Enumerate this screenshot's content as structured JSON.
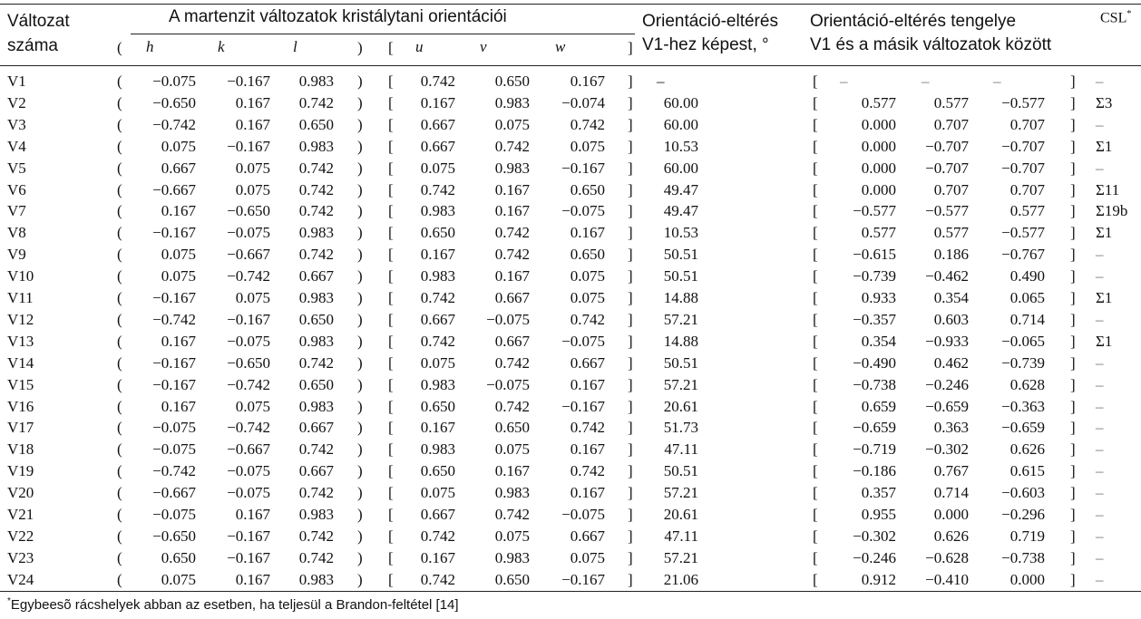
{
  "header": {
    "col1_line1": "Változat",
    "col1_line2": "száma",
    "group_title": "A martenzit változatok kristálytani orientációi",
    "angle_line1": "Orientáció-eltérés",
    "angle_line2": "V1-hez képest, °",
    "axis_line1": "Orientáció-eltérés tengelye",
    "axis_line2": "V1 és a másik változatok között",
    "csl": "CSL",
    "csl_mark": "*",
    "h": "h",
    "k": "k",
    "l": "l",
    "u": "u",
    "v": "v",
    "w": "w",
    "paren_open": "(",
    "paren_close": ")",
    "brack_open": "[",
    "brack_close": "]"
  },
  "rows": [
    {
      "id": "V1",
      "h": "−0.075",
      "k": "−0.167",
      "l": "0.983",
      "u": "0.742",
      "v": "0.650",
      "w": "0.167",
      "angle": "–",
      "a1": "–",
      "a2": "–",
      "a3": "–",
      "csl": "–"
    },
    {
      "id": "V2",
      "h": "−0.650",
      "k": "0.167",
      "l": "0.742",
      "u": "0.167",
      "v": "0.983",
      "w": "−0.074",
      "angle": "60.00",
      "a1": "0.577",
      "a2": "0.577",
      "a3": "−0.577",
      "csl": "Σ3"
    },
    {
      "id": "V3",
      "h": "−0.742",
      "k": "0.167",
      "l": "0.650",
      "u": "0.667",
      "v": "0.075",
      "w": "0.742",
      "angle": "60.00",
      "a1": "0.000",
      "a2": "0.707",
      "a3": "0.707",
      "csl": "–"
    },
    {
      "id": "V4",
      "h": "0.075",
      "k": "−0.167",
      "l": "0.983",
      "u": "0.667",
      "v": "0.742",
      "w": "0.075",
      "angle": "10.53",
      "a1": "0.000",
      "a2": "−0.707",
      "a3": "−0.707",
      "csl": "Σ1"
    },
    {
      "id": "V5",
      "h": "0.667",
      "k": "0.075",
      "l": "0.742",
      "u": "0.075",
      "v": "0.983",
      "w": "−0.167",
      "angle": "60.00",
      "a1": "0.000",
      "a2": "−0.707",
      "a3": "−0.707",
      "csl": "–"
    },
    {
      "id": "V6",
      "h": "−0.667",
      "k": "0.075",
      "l": "0.742",
      "u": "0.742",
      "v": "0.167",
      "w": "0.650",
      "angle": "49.47",
      "a1": "0.000",
      "a2": "0.707",
      "a3": "0.707",
      "csl": "Σ11"
    },
    {
      "id": "V7",
      "h": "0.167",
      "k": "−0.650",
      "l": "0.742",
      "u": "0.983",
      "v": "0.167",
      "w": "−0.075",
      "angle": "49.47",
      "a1": "−0.577",
      "a2": "−0.577",
      "a3": "0.577",
      "csl": "Σ19b"
    },
    {
      "id": "V8",
      "h": "−0.167",
      "k": "−0.075",
      "l": "0.983",
      "u": "0.650",
      "v": "0.742",
      "w": "0.167",
      "angle": "10.53",
      "a1": "0.577",
      "a2": "0.577",
      "a3": "−0.577",
      "csl": "Σ1"
    },
    {
      "id": "V9",
      "h": "0.075",
      "k": "−0.667",
      "l": "0.742",
      "u": "0.167",
      "v": "0.742",
      "w": "0.650",
      "angle": "50.51",
      "a1": "−0.615",
      "a2": "0.186",
      "a3": "−0.767",
      "csl": "–"
    },
    {
      "id": "V10",
      "h": "0.075",
      "k": "−0.742",
      "l": "0.667",
      "u": "0.983",
      "v": "0.167",
      "w": "0.075",
      "angle": "50.51",
      "a1": "−0.739",
      "a2": "−0.462",
      "a3": "0.490",
      "csl": "–"
    },
    {
      "id": "V11",
      "h": "−0.167",
      "k": "0.075",
      "l": "0.983",
      "u": "0.742",
      "v": "0.667",
      "w": "0.075",
      "angle": "14.88",
      "a1": "0.933",
      "a2": "0.354",
      "a3": "0.065",
      "csl": "Σ1"
    },
    {
      "id": "V12",
      "h": "−0.742",
      "k": "−0.167",
      "l": "0.650",
      "u": "0.667",
      "v": "−0.075",
      "w": "0.742",
      "angle": "57.21",
      "a1": "−0.357",
      "a2": "0.603",
      "a3": "0.714",
      "csl": "–"
    },
    {
      "id": "V13",
      "h": "0.167",
      "k": "−0.075",
      "l": "0.983",
      "u": "0.742",
      "v": "0.667",
      "w": "−0.075",
      "angle": "14.88",
      "a1": "0.354",
      "a2": "−0.933",
      "a3": "−0.065",
      "csl": "Σ1"
    },
    {
      "id": "V14",
      "h": "−0.167",
      "k": "−0.650",
      "l": "0.742",
      "u": "0.075",
      "v": "0.742",
      "w": "0.667",
      "angle": "50.51",
      "a1": "−0.490",
      "a2": "0.462",
      "a3": "−0.739",
      "csl": "–"
    },
    {
      "id": "V15",
      "h": "−0.167",
      "k": "−0.742",
      "l": "0.650",
      "u": "0.983",
      "v": "−0.075",
      "w": "0.167",
      "angle": "57.21",
      "a1": "−0.738",
      "a2": "−0.246",
      "a3": "0.628",
      "csl": "–"
    },
    {
      "id": "V16",
      "h": "0.167",
      "k": "0.075",
      "l": "0.983",
      "u": "0.650",
      "v": "0.742",
      "w": "−0.167",
      "angle": "20.61",
      "a1": "0.659",
      "a2": "−0.659",
      "a3": "−0.363",
      "csl": "–"
    },
    {
      "id": "V17",
      "h": "−0.075",
      "k": "−0.742",
      "l": "0.667",
      "u": "0.167",
      "v": "0.650",
      "w": "0.742",
      "angle": "51.73",
      "a1": "−0.659",
      "a2": "0.363",
      "a3": "−0.659",
      "csl": "–"
    },
    {
      "id": "V18",
      "h": "−0.075",
      "k": "−0.667",
      "l": "0.742",
      "u": "0.983",
      "v": "0.075",
      "w": "0.167",
      "angle": "47.11",
      "a1": "−0.719",
      "a2": "−0.302",
      "a3": "0.626",
      "csl": "–"
    },
    {
      "id": "V19",
      "h": "−0.742",
      "k": "−0.075",
      "l": "0.667",
      "u": "0.650",
      "v": "0.167",
      "w": "0.742",
      "angle": "50.51",
      "a1": "−0.186",
      "a2": "0.767",
      "a3": "0.615",
      "csl": "–"
    },
    {
      "id": "V20",
      "h": "−0.667",
      "k": "−0.075",
      "l": "0.742",
      "u": "0.075",
      "v": "0.983",
      "w": "0.167",
      "angle": "57.21",
      "a1": "0.357",
      "a2": "0.714",
      "a3": "−0.603",
      "csl": "–"
    },
    {
      "id": "V21",
      "h": "−0.075",
      "k": "0.167",
      "l": "0.983",
      "u": "0.667",
      "v": "0.742",
      "w": "−0.075",
      "angle": "20.61",
      "a1": "0.955",
      "a2": "0.000",
      "a3": "−0.296",
      "csl": "–"
    },
    {
      "id": "V22",
      "h": "−0.650",
      "k": "−0.167",
      "l": "0.742",
      "u": "0.742",
      "v": "0.075",
      "w": "0.667",
      "angle": "47.11",
      "a1": "−0.302",
      "a2": "0.626",
      "a3": "0.719",
      "csl": "–"
    },
    {
      "id": "V23",
      "h": "0.650",
      "k": "−0.167",
      "l": "0.742",
      "u": "0.167",
      "v": "0.983",
      "w": "0.075",
      "angle": "57.21",
      "a1": "−0.246",
      "a2": "−0.628",
      "a3": "−0.738",
      "csl": "–"
    },
    {
      "id": "V24",
      "h": "0.075",
      "k": "0.167",
      "l": "0.983",
      "u": "0.742",
      "v": "0.650",
      "w": "−0.167",
      "angle": "21.06",
      "a1": "0.912",
      "a2": "−0.410",
      "a3": "0.000",
      "csl": "–"
    }
  ],
  "footnote": {
    "mark": "*",
    "text": "Egybeesõ rácshelyek abban az esetben, ha teljesül a Brandon-feltétel [14]"
  }
}
